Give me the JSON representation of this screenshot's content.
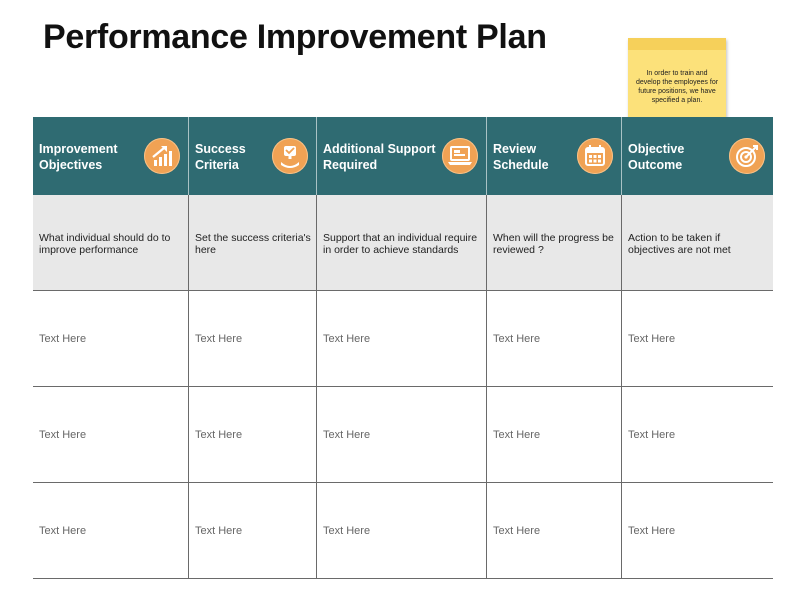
{
  "page": {
    "title": "Performance Improvement Plan"
  },
  "note": {
    "text": "In order to train and develop the employees for future positions, we have specified a plan."
  },
  "columns": [
    {
      "label": "Improvement Objectives",
      "icon": "growth-chart-icon",
      "description": "What individual should do to improve performance"
    },
    {
      "label": "Success Criteria",
      "icon": "trophy-hand-icon",
      "description": "Set the success criteria's here"
    },
    {
      "label": "Additional Support Required",
      "icon": "laptop-support-icon",
      "description": "Support that an individual require in order to achieve standards"
    },
    {
      "label": "Review Schedule",
      "icon": "calendar-icon",
      "description": "When will the progress be reviewed ?"
    },
    {
      "label": "Objective Outcome",
      "icon": "target-icon",
      "description": "Action to be taken if objectives are not met"
    }
  ],
  "rows": [
    [
      "Text Here",
      "Text Here",
      "Text Here",
      "Text Here",
      "Text Here"
    ],
    [
      "Text Here",
      "Text Here",
      "Text Here",
      "Text Here",
      "Text Here"
    ],
    [
      "Text Here",
      "Text Here",
      "Text Here",
      "Text Here",
      "Text Here"
    ]
  ],
  "colors": {
    "header": "#2f6b72",
    "icon_accent": "#f0a254",
    "note": "#fce17a",
    "description_bg": "#e8e8e8"
  }
}
